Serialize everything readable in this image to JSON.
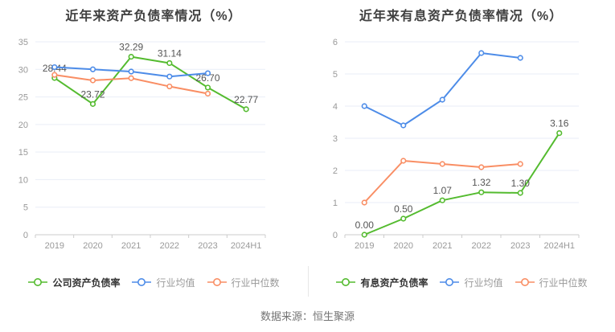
{
  "page": {
    "background": "#ffffff",
    "footer_source": "数据来源：恒生聚源"
  },
  "chart_data": [
    {
      "type": "line",
      "title": "近年来资产负债率情况（%）",
      "categories": [
        "2019",
        "2020",
        "2021",
        "2022",
        "2023",
        "2024H1"
      ],
      "ylim": [
        0,
        35
      ],
      "yticks": [
        0,
        5,
        10,
        15,
        20,
        25,
        30,
        35
      ],
      "grid": true,
      "legend_position": "bottom",
      "series": [
        {
          "name": "公司资产负债率",
          "color": "#54bb2f",
          "values": [
            28.44,
            23.72,
            32.29,
            31.14,
            26.7,
            22.77
          ],
          "data_labels": [
            "28.44",
            "23.72",
            "32.29",
            "31.14",
            "26.70",
            "22.77"
          ]
        },
        {
          "name": "行业均值",
          "color": "#4d8ce8",
          "values": [
            30.4,
            30.0,
            29.6,
            28.7,
            29.3,
            null
          ]
        },
        {
          "name": "行业中位数",
          "color": "#f98e64",
          "values": [
            29.0,
            28.0,
            28.4,
            26.9,
            25.6,
            null
          ]
        }
      ]
    },
    {
      "type": "line",
      "title": "近年来有息资产负债率情况（%）",
      "categories": [
        "2019",
        "2020",
        "2021",
        "2022",
        "2023",
        "2024H1"
      ],
      "ylim": [
        0,
        6
      ],
      "yticks": [
        0,
        1,
        2,
        3,
        4,
        5,
        6
      ],
      "grid": true,
      "legend_position": "bottom",
      "series": [
        {
          "name": "有息资产负债率",
          "color": "#54bb2f",
          "values": [
            0.0,
            0.5,
            1.07,
            1.32,
            1.3,
            3.16
          ],
          "data_labels": [
            "0.00",
            "0.50",
            "1.07",
            "1.32",
            "1.30",
            "3.16"
          ]
        },
        {
          "name": "行业均值",
          "color": "#4d8ce8",
          "values": [
            4.0,
            3.4,
            4.2,
            5.65,
            5.5,
            null
          ]
        },
        {
          "name": "行业中位数",
          "color": "#f98e64",
          "values": [
            1.0,
            2.3,
            2.2,
            2.1,
            2.2,
            null
          ]
        }
      ]
    }
  ],
  "colors": {
    "grid": "#e9eef7",
    "axis": "#cccccc",
    "tick_label": "#999999",
    "data_label": "#555555",
    "title": "#404040",
    "footer": "#737373",
    "legend_active_label": "#333333",
    "legend_label": "#999999",
    "divider": "#e6e6e6"
  }
}
